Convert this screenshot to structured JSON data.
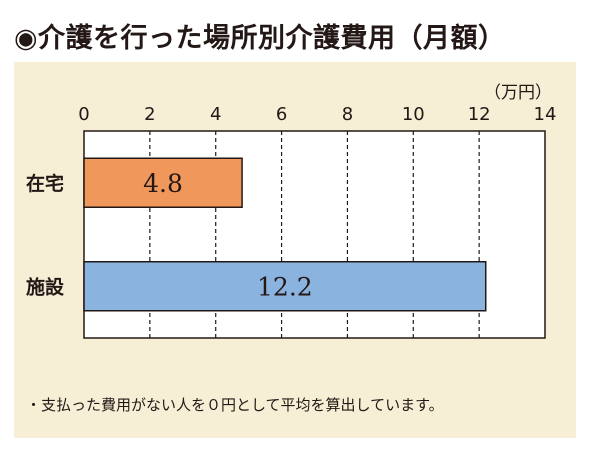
{
  "header": {
    "title": "◉介護を行った場所別介護費用（月額）"
  },
  "chart_data": {
    "type": "bar",
    "orientation": "horizontal",
    "categories": [
      "在宅",
      "施設"
    ],
    "values": [
      4.8,
      12.2
    ],
    "value_labels": [
      "4.8",
      "12.2"
    ],
    "bar_colors": [
      "#f0985b",
      "#8bb3e0"
    ],
    "unit_label": "（万円）",
    "xlim": [
      0,
      14
    ],
    "xticks": [
      0,
      2,
      4,
      6,
      8,
      10,
      12,
      14
    ],
    "xtick_labels": [
      "0",
      "2",
      "4",
      "6",
      "8",
      "10",
      "12",
      "14"
    ],
    "grid": "vertical-dashed"
  },
  "footnote": "・支払った費用がない人を０円として平均を算出しています。"
}
